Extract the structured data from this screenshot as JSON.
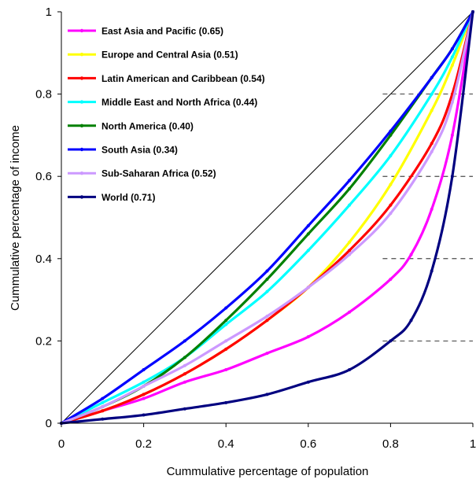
{
  "chart_data": {
    "type": "line",
    "xlabel": "Cummulative percentage of population",
    "ylabel": "Cummulative percentage of income",
    "xlim": [
      0,
      1
    ],
    "ylim": [
      0,
      1
    ],
    "xticks": [
      "0",
      "0.2",
      "0.4",
      "0.6",
      "0.8",
      "1"
    ],
    "yticks": [
      "0",
      "0.2",
      "0.4",
      "0.6",
      "0.8",
      "1"
    ],
    "grid": "horizontal dashed, right portion",
    "legend_position": "top-left",
    "reference_line": {
      "x": [
        0,
        1
      ],
      "y": [
        0,
        1
      ],
      "color": "#000000"
    },
    "series": [
      {
        "name": "East Asia and Pacific (0.65)",
        "color": "#ff00ff",
        "x": [
          0,
          0.1,
          0.2,
          0.3,
          0.4,
          0.5,
          0.6,
          0.7,
          0.8,
          0.85,
          0.9,
          0.95,
          1
        ],
        "y": [
          0,
          0.03,
          0.06,
          0.1,
          0.13,
          0.17,
          0.21,
          0.27,
          0.35,
          0.41,
          0.52,
          0.7,
          1
        ]
      },
      {
        "name": "Europe and Central Asia (0.51)",
        "color": "#ffff00",
        "x": [
          0,
          0.1,
          0.2,
          0.3,
          0.4,
          0.5,
          0.6,
          0.7,
          0.8,
          0.9,
          0.95,
          1
        ],
        "y": [
          0,
          0.03,
          0.07,
          0.12,
          0.18,
          0.25,
          0.33,
          0.44,
          0.58,
          0.76,
          0.87,
          1
        ]
      },
      {
        "name": "Latin American and Caribbean (0.54)",
        "color": "#ff0000",
        "x": [
          0,
          0.1,
          0.2,
          0.3,
          0.4,
          0.5,
          0.6,
          0.7,
          0.8,
          0.9,
          0.95,
          1
        ],
        "y": [
          0,
          0.03,
          0.07,
          0.12,
          0.18,
          0.25,
          0.33,
          0.42,
          0.53,
          0.68,
          0.8,
          1
        ]
      },
      {
        "name": "Middle East and North Africa (0.44)",
        "color": "#00ffff",
        "x": [
          0,
          0.1,
          0.2,
          0.3,
          0.4,
          0.5,
          0.6,
          0.7,
          0.8,
          0.9,
          0.95,
          1
        ],
        "y": [
          0,
          0.05,
          0.1,
          0.16,
          0.24,
          0.32,
          0.42,
          0.53,
          0.65,
          0.8,
          0.89,
          1
        ]
      },
      {
        "name": "North America (0.40)",
        "color": "#008000",
        "x": [
          0,
          0.1,
          0.2,
          0.3,
          0.4,
          0.5,
          0.6,
          0.7,
          0.8,
          0.9,
          0.95,
          1
        ],
        "y": [
          0,
          0.04,
          0.09,
          0.16,
          0.25,
          0.35,
          0.46,
          0.57,
          0.7,
          0.84,
          0.91,
          1
        ]
      },
      {
        "name": "South Asia (0.34)",
        "color": "#0000ff",
        "x": [
          0,
          0.1,
          0.2,
          0.3,
          0.4,
          0.5,
          0.6,
          0.7,
          0.8,
          0.9,
          0.95,
          1
        ],
        "y": [
          0,
          0.06,
          0.13,
          0.2,
          0.28,
          0.37,
          0.48,
          0.59,
          0.71,
          0.84,
          0.91,
          1
        ]
      },
      {
        "name": "Sub-Saharan Africa (0.52)",
        "color": "#cc99ff",
        "x": [
          0,
          0.1,
          0.2,
          0.3,
          0.4,
          0.5,
          0.6,
          0.7,
          0.8,
          0.9,
          0.95,
          1
        ],
        "y": [
          0,
          0.04,
          0.09,
          0.14,
          0.2,
          0.26,
          0.33,
          0.41,
          0.51,
          0.66,
          0.78,
          1
        ]
      },
      {
        "name": "World (0.71)",
        "color": "#000080",
        "x": [
          0,
          0.1,
          0.2,
          0.3,
          0.4,
          0.5,
          0.6,
          0.7,
          0.8,
          0.85,
          0.9,
          0.95,
          1
        ],
        "y": [
          0,
          0.01,
          0.02,
          0.035,
          0.05,
          0.07,
          0.1,
          0.13,
          0.2,
          0.25,
          0.37,
          0.6,
          1
        ]
      }
    ]
  }
}
